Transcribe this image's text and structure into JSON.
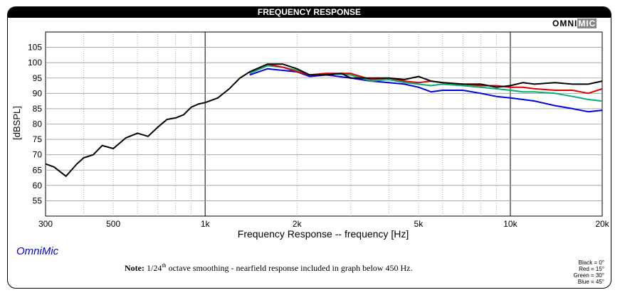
{
  "header": {
    "title": "FREQUENCY RESPONSE",
    "brand_bold": "OMNI",
    "brand_light": "MIC"
  },
  "footer": {
    "app_name": "OmniMic",
    "note_label": "Note:",
    "note_pre": "1/24",
    "note_sup": "th",
    "note_post": "octave smoothing - nearfield response included in graph below 450 Hz."
  },
  "legend": [
    "Black = 0°",
    "Red = 15°",
    "Green = 30°",
    "Blue = 45°"
  ],
  "chart_data": {
    "type": "line",
    "xlabel": "Frequency Response -- frequency [Hz]",
    "ylabel": "[dBSPL]",
    "xscale": "log",
    "xlim": [
      300,
      20000
    ],
    "ylim": [
      50,
      110
    ],
    "xticks": [
      300,
      500,
      1000,
      2000,
      5000,
      10000,
      20000
    ],
    "xtick_labels": [
      "300",
      "500",
      "1k",
      "2k",
      "5k",
      "10k",
      "20k"
    ],
    "yticks": [
      55,
      60,
      65,
      70,
      75,
      80,
      85,
      90,
      95,
      100,
      105
    ],
    "grid": true,
    "legend_position": "bottom-right",
    "series": [
      {
        "color": "#0000e0",
        "x": [
          1400,
          1600,
          1800,
          2000,
          2200,
          2500,
          3000,
          3500,
          4000,
          4500,
          5000,
          5500,
          6000,
          7000,
          8000,
          9000,
          10000,
          11000,
          12000,
          14000,
          16000,
          18000,
          20000
        ],
        "y": [
          96,
          98,
          97.5,
          97,
          95.5,
          96,
          95,
          94,
          93.5,
          93,
          92,
          90.5,
          91,
          91,
          90,
          89,
          88.5,
          88,
          87.5,
          86,
          85,
          84,
          84.5
        ]
      },
      {
        "color": "#00b070",
        "x": [
          1400,
          1600,
          1800,
          2000,
          2200,
          2500,
          3000,
          3500,
          4000,
          4500,
          5000,
          5500,
          6000,
          7000,
          8000,
          9000,
          10000,
          11000,
          12000,
          14000,
          16000,
          18000,
          20000
        ],
        "y": [
          96.5,
          99,
          98.5,
          97.5,
          96,
          96.5,
          96,
          94,
          94.5,
          93.5,
          93,
          92.5,
          93,
          92.5,
          92,
          91.5,
          91,
          90.5,
          90.5,
          90,
          89,
          88,
          87.5
        ]
      },
      {
        "color": "#e00000",
        "x": [
          1400,
          1600,
          1800,
          2000,
          2200,
          2500,
          3000,
          3500,
          4000,
          4500,
          5000,
          5500,
          6000,
          7000,
          8000,
          9000,
          10000,
          11000,
          12000,
          14000,
          16000,
          18000,
          20000
        ],
        "y": [
          97,
          99.5,
          98.5,
          97,
          96,
          96.5,
          96.5,
          94.5,
          95,
          94,
          93.5,
          94,
          93.5,
          93,
          92.5,
          92.5,
          92,
          92,
          91.5,
          91,
          91,
          90,
          91.5
        ]
      },
      {
        "color": "#000000",
        "x": [
          300,
          320,
          350,
          380,
          400,
          430,
          460,
          500,
          550,
          600,
          650,
          700,
          750,
          800,
          850,
          900,
          950,
          1000,
          1100,
          1200,
          1300,
          1400,
          1600,
          1800,
          2000,
          2200,
          2500,
          2800,
          3000,
          3500,
          4000,
          4500,
          5000,
          5500,
          6000,
          7000,
          8000,
          9000,
          10000,
          11000,
          12000,
          14000,
          16000,
          18000,
          20000
        ],
        "y": [
          67,
          66,
          63,
          67,
          69,
          70,
          73,
          72,
          75.5,
          77,
          76,
          79,
          81.5,
          82,
          83,
          85.5,
          86.5,
          87,
          88.5,
          91.5,
          95,
          97,
          99.5,
          99.5,
          98,
          96,
          96,
          96.5,
          95,
          95,
          95,
          94.5,
          95.5,
          94,
          93.5,
          93,
          93,
          92,
          92.5,
          93.5,
          93,
          93.5,
          93,
          93,
          94
        ]
      }
    ]
  }
}
